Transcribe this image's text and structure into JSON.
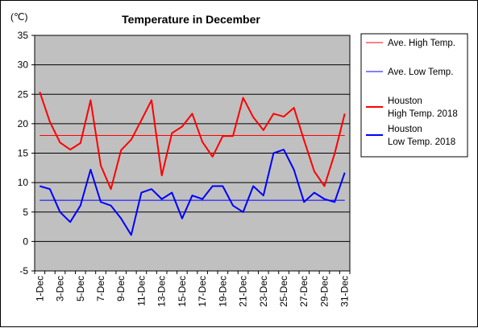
{
  "chart_data": {
    "type": "line",
    "title": "Temperature in December",
    "unit_label": "(℃)",
    "xlabel": "",
    "ylabel": "",
    "ylim": [
      -5,
      35
    ],
    "y_ticks": [
      -5,
      0,
      5,
      10,
      15,
      20,
      25,
      30,
      35
    ],
    "grid": "horizontal",
    "legend_position": "right",
    "plot_background": "#c0c0c0",
    "x_tick_labels": [
      "1-Dec",
      "3-Dec",
      "5-Dec",
      "7-Dec",
      "9-Dec",
      "11-Dec",
      "13-Dec",
      "15-Dec",
      "17-Dec",
      "19-Dec",
      "21-Dec",
      "23-Dec",
      "25-Dec",
      "27-Dec",
      "29-Dec",
      "31-Dec"
    ],
    "categories": [
      "1-Dec",
      "2-Dec",
      "3-Dec",
      "4-Dec",
      "5-Dec",
      "6-Dec",
      "7-Dec",
      "8-Dec",
      "9-Dec",
      "10-Dec",
      "11-Dec",
      "12-Dec",
      "13-Dec",
      "14-Dec",
      "15-Dec",
      "16-Dec",
      "17-Dec",
      "18-Dec",
      "19-Dec",
      "20-Dec",
      "21-Dec",
      "22-Dec",
      "23-Dec",
      "24-Dec",
      "25-Dec",
      "26-Dec",
      "27-Dec",
      "28-Dec",
      "29-Dec",
      "30-Dec",
      "31-Dec"
    ],
    "series": [
      {
        "name": "Ave. High Temp.",
        "color": "#ff0000",
        "width": "thin",
        "values": [
          18,
          18,
          18,
          18,
          18,
          18,
          18,
          18,
          18,
          18,
          18,
          18,
          18,
          18,
          18,
          18,
          18,
          18,
          18,
          18,
          18,
          18,
          18,
          18,
          18,
          18,
          18,
          18,
          18,
          18,
          18
        ]
      },
      {
        "name": "Ave. Low Temp.",
        "color": "#0000ff",
        "width": "thin",
        "values": [
          7,
          7,
          7,
          7,
          7,
          7,
          7,
          7,
          7,
          7,
          7,
          7,
          7,
          7,
          7,
          7,
          7,
          7,
          7,
          7,
          7,
          7,
          7,
          7,
          7,
          7,
          7,
          7,
          7,
          7,
          7
        ]
      },
      {
        "name": "Houston High Temp. 2018",
        "legend_lines": [
          "Houston",
          "High Temp. 2018"
        ],
        "color": "#ff0000",
        "width": "thick",
        "values": [
          25.4,
          20.3,
          16.8,
          15.6,
          16.7,
          24.0,
          12.9,
          8.9,
          15.5,
          17.3,
          20.6,
          24.0,
          11.2,
          18.4,
          19.5,
          21.7,
          16.9,
          14.4,
          17.9,
          17.9,
          24.4,
          21.1,
          18.9,
          21.7,
          21.2,
          22.7,
          17.2,
          11.9,
          9.4,
          14.9,
          21.7
        ]
      },
      {
        "name": "Houston Low Temp. 2018",
        "legend_lines": [
          "Houston",
          "Low Temp. 2018"
        ],
        "color": "#0000ff",
        "width": "thick",
        "values": [
          9.4,
          8.9,
          5.0,
          3.3,
          6.1,
          12.2,
          6.7,
          6.1,
          3.9,
          1.1,
          8.3,
          8.9,
          7.2,
          8.3,
          3.9,
          7.8,
          7.2,
          9.4,
          9.4,
          6.1,
          5.0,
          9.4,
          7.8,
          15.0,
          15.6,
          12.2,
          6.7,
          8.3,
          7.2,
          6.7,
          11.7
        ]
      }
    ]
  }
}
